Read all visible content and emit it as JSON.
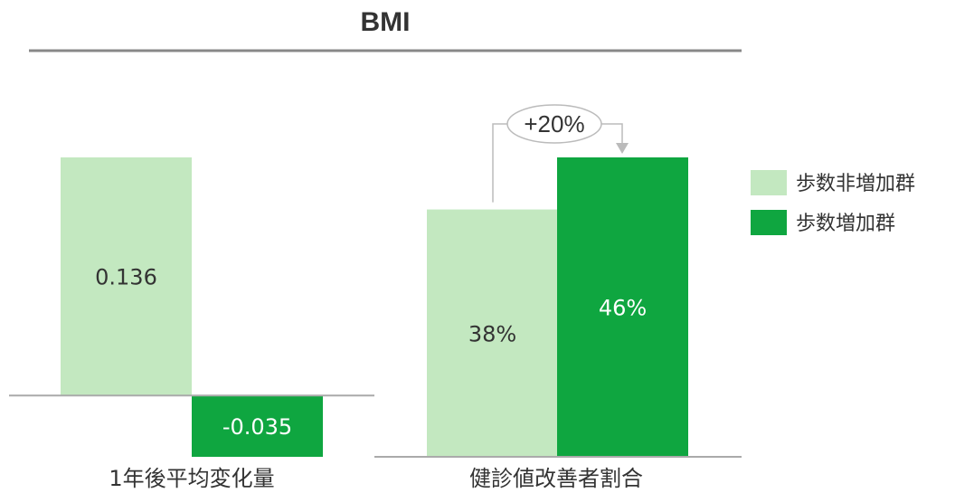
{
  "chart_data": {
    "title": "BMI",
    "colors": {
      "light": "#c3e8c0",
      "dark": "#0fa640",
      "axis": "#aaaaaa",
      "title_rule": "#888888",
      "callout": "#bbbbbb"
    },
    "legend": [
      {
        "name": "歩数非増加群",
        "color": "#c3e8c0"
      },
      {
        "name": "歩数増加群",
        "color": "#0fa640"
      }
    ],
    "panels": [
      {
        "type": "bar",
        "category": "1年後平均変化量",
        "series": [
          {
            "name": "歩数非増加群",
            "value": 0.136,
            "label": "0.136"
          },
          {
            "name": "歩数増加群",
            "value": -0.035,
            "label": "-0.035"
          }
        ],
        "ylim": [
          -0.035,
          0.136
        ]
      },
      {
        "type": "bar",
        "category": "健診値改善者割合",
        "series": [
          {
            "name": "歩数非増加群",
            "value": 38,
            "label": "38%"
          },
          {
            "name": "歩数増加群",
            "value": 46,
            "label": "46%"
          }
        ],
        "ylim": [
          0,
          46
        ],
        "annotation": "+20%"
      }
    ]
  }
}
